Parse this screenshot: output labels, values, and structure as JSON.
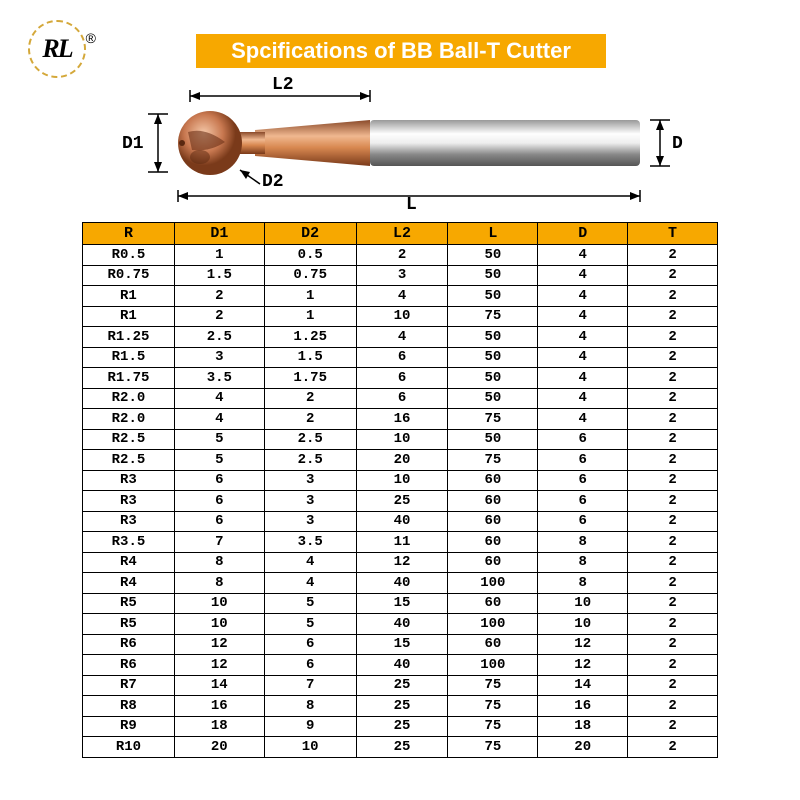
{
  "logo": {
    "text": "RL",
    "trademark": "®"
  },
  "title": "Spcifications of  BB Ball-T  Cutter",
  "diagram": {
    "labels": {
      "D1": "D1",
      "D2": "D2",
      "L2": "L2",
      "L": "L",
      "D": "D"
    }
  },
  "table": {
    "columns": [
      "R",
      "D1",
      "D2",
      "L2",
      "L",
      "D",
      "T"
    ],
    "rows": [
      [
        "R0.5",
        "1",
        "0.5",
        "2",
        "50",
        "4",
        "2"
      ],
      [
        "R0.75",
        "1.5",
        "0.75",
        "3",
        "50",
        "4",
        "2"
      ],
      [
        "R1",
        "2",
        "1",
        "4",
        "50",
        "4",
        "2"
      ],
      [
        "R1",
        "2",
        "1",
        "10",
        "75",
        "4",
        "2"
      ],
      [
        "R1.25",
        "2.5",
        "1.25",
        "4",
        "50",
        "4",
        "2"
      ],
      [
        "R1.5",
        "3",
        "1.5",
        "6",
        "50",
        "4",
        "2"
      ],
      [
        "R1.75",
        "3.5",
        "1.75",
        "6",
        "50",
        "4",
        "2"
      ],
      [
        "R2.0",
        "4",
        "2",
        "6",
        "50",
        "4",
        "2"
      ],
      [
        "R2.0",
        "4",
        "2",
        "16",
        "75",
        "4",
        "2"
      ],
      [
        "R2.5",
        "5",
        "2.5",
        "10",
        "50",
        "6",
        "2"
      ],
      [
        "R2.5",
        "5",
        "2.5",
        "20",
        "75",
        "6",
        "2"
      ],
      [
        "R3",
        "6",
        "3",
        "10",
        "60",
        "6",
        "2"
      ],
      [
        "R3",
        "6",
        "3",
        "25",
        "60",
        "6",
        "2"
      ],
      [
        "R3",
        "6",
        "3",
        "40",
        "60",
        "6",
        "2"
      ],
      [
        "R3.5",
        "7",
        "3.5",
        "11",
        "60",
        "8",
        "2"
      ],
      [
        "R4",
        "8",
        "4",
        "12",
        "60",
        "8",
        "2"
      ],
      [
        "R4",
        "8",
        "4",
        "40",
        "100",
        "8",
        "2"
      ],
      [
        "R5",
        "10",
        "5",
        "15",
        "60",
        "10",
        "2"
      ],
      [
        "R5",
        "10",
        "5",
        "40",
        "100",
        "10",
        "2"
      ],
      [
        "R6",
        "12",
        "6",
        "15",
        "60",
        "12",
        "2"
      ],
      [
        "R6",
        "12",
        "6",
        "40",
        "100",
        "12",
        "2"
      ],
      [
        "R7",
        "14",
        "7",
        "25",
        "75",
        "14",
        "2"
      ],
      [
        "R8",
        "16",
        "8",
        "25",
        "75",
        "16",
        "2"
      ],
      [
        "R9",
        "18",
        "9",
        "25",
        "75",
        "18",
        "2"
      ],
      [
        "R10",
        "20",
        "10",
        "25",
        "75",
        "20",
        "2"
      ]
    ]
  },
  "colors": {
    "accent": "#f7a800",
    "logo_border": "#d4a83a",
    "cutter_head": "#c87850",
    "cutter_shaft": "#c0c0c0"
  }
}
